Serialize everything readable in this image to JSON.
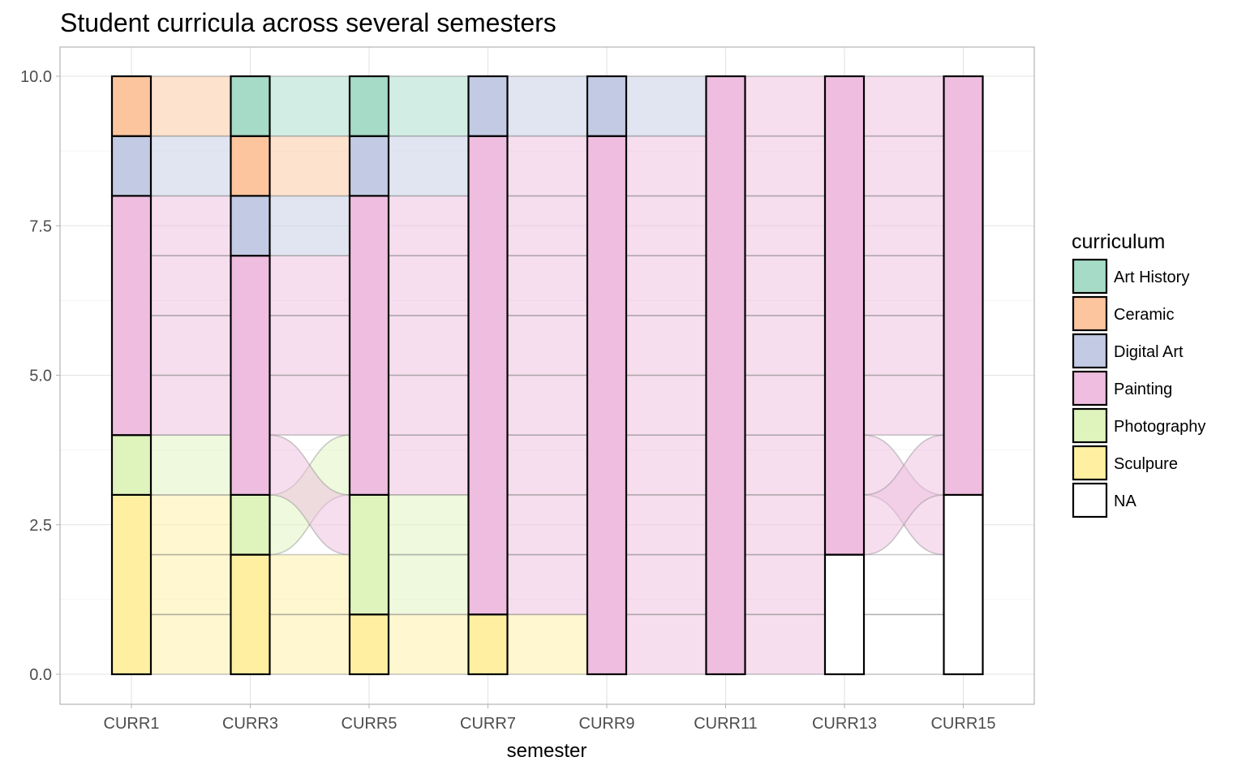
{
  "chart_data": {
    "type": "alluvial",
    "title": "Student curricula across several semesters",
    "xlabel": "semester",
    "ylabel": "",
    "ylim": [
      0,
      10
    ],
    "yticks": [
      0,
      2.5,
      5,
      7.5,
      10
    ],
    "ytick_labels": [
      "0.0",
      "2.5",
      "5.0",
      "7.5",
      "10.0"
    ],
    "grid": true,
    "legend": {
      "title": "curriculum",
      "position": "right",
      "entries": [
        "Art History",
        "Ceramic",
        "Digital Art",
        "Painting",
        "Photography",
        "Sculpure",
        "NA"
      ]
    },
    "colors": {
      "Art History": "#A6DBC7",
      "Ceramic": "#FCC59E",
      "Digital Art": "#C2CBE3",
      "Painting": "#EEBDDF",
      "Photography": "#DFF4BC",
      "Sculpure": "#FEF0A0",
      "NA": "#FFFFFF"
    },
    "categories": [
      "CURR1",
      "CURR3",
      "CURR5",
      "CURR7",
      "CURR9",
      "CURR11",
      "CURR13",
      "CURR15"
    ],
    "students": [
      [
        "Sculpure",
        "Sculpure",
        "Sculpure",
        "Sculpure",
        "Painting",
        "Painting",
        "NA",
        "NA"
      ],
      [
        "Sculpure",
        "Sculpure",
        "Photography",
        "Painting",
        "Painting",
        "Painting",
        "NA",
        "NA"
      ],
      [
        "Sculpure",
        "Photography",
        "Painting",
        "Painting",
        "Painting",
        "Painting",
        "Painting",
        "NA"
      ],
      [
        "Photography",
        "Painting",
        "Photography",
        "Painting",
        "Painting",
        "Painting",
        "Painting",
        "Painting"
      ],
      [
        "Painting",
        "Painting",
        "Painting",
        "Painting",
        "Painting",
        "Painting",
        "Painting",
        "Painting"
      ],
      [
        "Painting",
        "Painting",
        "Painting",
        "Painting",
        "Painting",
        "Painting",
        "Painting",
        "Painting"
      ],
      [
        "Painting",
        "Painting",
        "Painting",
        "Painting",
        "Painting",
        "Painting",
        "Painting",
        "Painting"
      ],
      [
        "Painting",
        "Digital Art",
        "Painting",
        "Painting",
        "Painting",
        "Painting",
        "Painting",
        "Painting"
      ],
      [
        "Digital Art",
        "Ceramic",
        "Digital Art",
        "Painting",
        "Painting",
        "Painting",
        "Painting",
        "Painting"
      ],
      [
        "Ceramic",
        "Art History",
        "Art History",
        "Digital Art",
        "Digital Art",
        "Painting",
        "Painting",
        "Painting"
      ]
    ],
    "stack_order": [
      "NA",
      "Sculpure",
      "Photography",
      "Painting",
      "Digital Art",
      "Ceramic",
      "Art History"
    ]
  }
}
